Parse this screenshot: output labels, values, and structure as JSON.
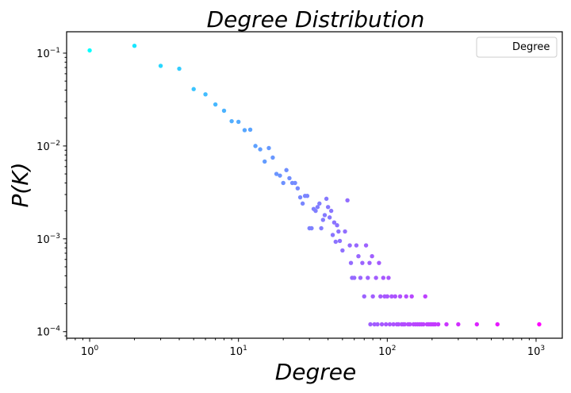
{
  "chart_data": {
    "type": "scatter",
    "title": "Degree Distribution",
    "xlabel": "Degree",
    "ylabel": "P(K)",
    "x_scale": "log",
    "y_scale": "log",
    "xlim": [
      0.7,
      1500
    ],
    "ylim": [
      8.5e-05,
      0.17
    ],
    "x_ticks": [
      {
        "base": "10",
        "exp": "0",
        "value": 1
      },
      {
        "base": "10",
        "exp": "1",
        "value": 10
      },
      {
        "base": "10",
        "exp": "2",
        "value": 100
      },
      {
        "base": "10",
        "exp": "3",
        "value": 1000
      }
    ],
    "y_ticks": [
      {
        "base": "10",
        "exp": "−4",
        "value": 0.0001
      },
      {
        "base": "10",
        "exp": "−3",
        "value": 0.001
      },
      {
        "base": "10",
        "exp": "−2",
        "value": 0.01
      },
      {
        "base": "10",
        "exp": "−1",
        "value": 0.1
      }
    ],
    "legend": {
      "label": "Degree",
      "position": "top-right"
    },
    "grid": false,
    "colormap": [
      "#00ffff",
      "#ff00ff"
    ],
    "series": [
      {
        "name": "Degree",
        "points": [
          [
            1,
            0.107
          ],
          [
            2,
            0.12
          ],
          [
            3,
            0.073
          ],
          [
            4,
            0.068
          ],
          [
            5,
            0.041
          ],
          [
            6,
            0.036
          ],
          [
            7,
            0.028
          ],
          [
            8,
            0.024
          ],
          [
            9,
            0.0185
          ],
          [
            10,
            0.0182
          ],
          [
            11,
            0.0148
          ],
          [
            12,
            0.015
          ],
          [
            13,
            0.01
          ],
          [
            14,
            0.0092
          ],
          [
            15,
            0.0068
          ],
          [
            16,
            0.0095
          ],
          [
            17,
            0.0075
          ],
          [
            18,
            0.005
          ],
          [
            19,
            0.0048
          ],
          [
            20,
            0.004
          ],
          [
            21,
            0.0055
          ],
          [
            22,
            0.0045
          ],
          [
            23,
            0.004
          ],
          [
            24,
            0.004
          ],
          [
            25,
            0.0035
          ],
          [
            26,
            0.0028
          ],
          [
            27,
            0.0024
          ],
          [
            28,
            0.0029
          ],
          [
            29,
            0.0029
          ],
          [
            30,
            0.0013
          ],
          [
            31,
            0.0013
          ],
          [
            32,
            0.0021
          ],
          [
            33,
            0.002
          ],
          [
            34,
            0.0022
          ],
          [
            35,
            0.0024
          ],
          [
            36,
            0.0013
          ],
          [
            37,
            0.0016
          ],
          [
            38,
            0.0018
          ],
          [
            39,
            0.0027
          ],
          [
            40,
            0.0022
          ],
          [
            41,
            0.0017
          ],
          [
            42,
            0.002
          ],
          [
            43,
            0.0011
          ],
          [
            44,
            0.0015
          ],
          [
            45,
            0.00093
          ],
          [
            46,
            0.0014
          ],
          [
            47,
            0.0012
          ],
          [
            48,
            0.00095
          ],
          [
            50,
            0.00075
          ],
          [
            52,
            0.0012
          ],
          [
            54,
            0.0026
          ],
          [
            56,
            0.00085
          ],
          [
            57,
            0.00055
          ],
          [
            58,
            0.00038
          ],
          [
            60,
            0.00038
          ],
          [
            62,
            0.00085
          ],
          [
            64,
            0.00065
          ],
          [
            66,
            0.00038
          ],
          [
            68,
            0.00055
          ],
          [
            70,
            0.00024
          ],
          [
            72,
            0.00085
          ],
          [
            74,
            0.00038
          ],
          [
            76,
            0.00055
          ],
          [
            77,
            0.00012
          ],
          [
            79,
            0.00065
          ],
          [
            80,
            0.00024
          ],
          [
            82,
            0.00012
          ],
          [
            84,
            0.00038
          ],
          [
            86,
            0.00012
          ],
          [
            88,
            0.00055
          ],
          [
            90,
            0.00024
          ],
          [
            92,
            0.00012
          ],
          [
            94,
            0.00038
          ],
          [
            96,
            0.00024
          ],
          [
            98,
            0.00012
          ],
          [
            100,
            0.00024
          ],
          [
            102,
            0.00038
          ],
          [
            104,
            0.00012
          ],
          [
            107,
            0.00024
          ],
          [
            110,
            0.00012
          ],
          [
            113,
            0.00024
          ],
          [
            116,
            0.00012
          ],
          [
            119,
            0.00012
          ],
          [
            122,
            0.00024
          ],
          [
            125,
            0.00012
          ],
          [
            128,
            0.00012
          ],
          [
            131,
            0.00012
          ],
          [
            134,
            0.00024
          ],
          [
            138,
            0.00012
          ],
          [
            142,
            0.00012
          ],
          [
            146,
            0.00024
          ],
          [
            150,
            0.00012
          ],
          [
            155,
            0.00012
          ],
          [
            160,
            0.00012
          ],
          [
            165,
            0.00012
          ],
          [
            170,
            0.00012
          ],
          [
            175,
            0.00012
          ],
          [
            180,
            0.00024
          ],
          [
            185,
            0.00012
          ],
          [
            190,
            0.00012
          ],
          [
            195,
            0.00012
          ],
          [
            200,
            0.00012
          ],
          [
            205,
            0.00012
          ],
          [
            210,
            0.00012
          ],
          [
            220,
            0.00012
          ],
          [
            250,
            0.00012
          ],
          [
            300,
            0.00012
          ],
          [
            400,
            0.00012
          ],
          [
            550,
            0.00012
          ],
          [
            1050,
            0.00012
          ]
        ]
      }
    ]
  }
}
